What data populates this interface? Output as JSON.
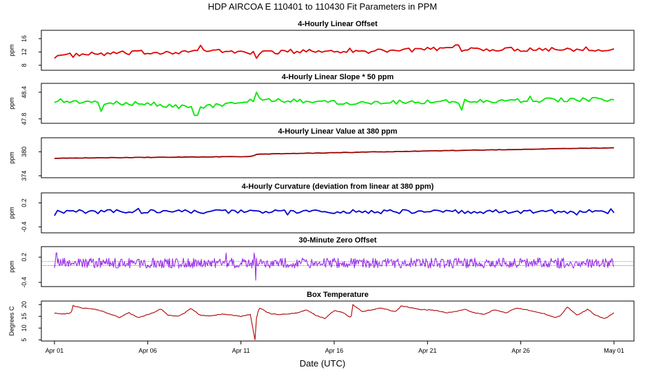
{
  "figure": {
    "title": "HDP   AIRCOA E   110401 to 110430   Fit Parameters in PPM",
    "xlabel": "Date (UTC)",
    "x_ticks": [
      "Apr 01",
      "Apr 06",
      "Apr 11",
      "Apr 16",
      "Apr 21",
      "Apr 26",
      "May 01"
    ]
  },
  "chart_data": [
    {
      "type": "line",
      "title": "4-Hourly Linear Offset",
      "ylabel": "ppm",
      "yticks": [
        "8",
        "12",
        "16"
      ],
      "ylim": [
        6.5,
        18.5
      ],
      "color": "#e00000",
      "x_range_days": [
        0,
        30
      ],
      "baseline": [
        [
          0,
          10.8
        ],
        [
          3,
          11.5
        ],
        [
          8,
          12.3
        ],
        [
          11,
          11.9
        ],
        [
          15,
          12.4
        ],
        [
          22,
          12.8
        ],
        [
          30,
          12.9
        ]
      ],
      "noise": 0.7,
      "step_hours": 4,
      "spikes": [
        [
          7.8,
          14.0
        ],
        [
          10.8,
          10.1
        ],
        [
          16.8,
          11.6
        ],
        [
          21.6,
          14.1
        ],
        [
          28.5,
          13.5
        ]
      ]
    },
    {
      "type": "line",
      "title": "4-Hourly Linear Slope * 50 ppm",
      "ylabel": "ppm",
      "yticks": [
        "47.8",
        "48.4"
      ],
      "ylim": [
        47.7,
        48.6
      ],
      "color": "#00e800",
      "x_range_days": [
        0,
        30
      ],
      "baseline": [
        [
          0,
          48.22
        ],
        [
          2.5,
          48.15
        ],
        [
          5,
          48.15
        ],
        [
          7.5,
          48.05
        ],
        [
          11,
          48.22
        ],
        [
          16,
          48.17
        ],
        [
          30,
          48.24
        ]
      ],
      "noise": 0.05,
      "step_hours": 4,
      "spikes": [
        [
          2.5,
          47.97
        ],
        [
          7.6,
          47.88
        ],
        [
          10.8,
          48.4
        ],
        [
          21.8,
          48.0
        ],
        [
          25.5,
          48.31
        ]
      ]
    },
    {
      "type": "line",
      "title": "4-Hourly Linear Value at 380 ppm",
      "ylabel": "ppm",
      "yticks": [
        "374",
        "380"
      ],
      "ylim": [
        373.5,
        383.5
      ],
      "color": "#990000",
      "x_range_days": [
        0,
        30
      ],
      "baseline": [
        [
          0,
          378.4
        ],
        [
          10.5,
          378.8
        ],
        [
          10.9,
          379.4
        ],
        [
          20,
          380.2
        ],
        [
          30,
          381.0
        ]
      ],
      "noise": 0.05,
      "step_hours": 4,
      "spikes": []
    },
    {
      "type": "line",
      "title": "4-Hourly Curvature (deviation from linear at 380 ppm)",
      "ylabel": "ppm",
      "yticks": [
        "-0.4",
        "0.2"
      ],
      "ylim": [
        -0.55,
        0.45
      ],
      "color": "#0000d0",
      "x_range_days": [
        0,
        30
      ],
      "baseline": [
        [
          0,
          -0.02
        ],
        [
          30,
          -0.02
        ]
      ],
      "noise": 0.05,
      "step_hours": 4,
      "spikes": [
        [
          0.0,
          -0.12
        ],
        [
          4.5,
          0.06
        ],
        [
          12.5,
          -0.1
        ],
        [
          28.0,
          -0.1
        ],
        [
          29.8,
          0.05
        ]
      ]
    },
    {
      "type": "line",
      "title": "30-Minute Zero Offset",
      "ylabel": "ppm",
      "yticks": [
        "-0.4",
        "0.2"
      ],
      "ylim": [
        -0.5,
        0.45
      ],
      "color": "#9a30e8",
      "x_range_days": [
        0,
        30
      ],
      "baseline": [
        [
          0,
          0.06
        ],
        [
          30,
          0.06
        ]
      ],
      "noise": 0.12,
      "step_hours": 1,
      "spikes": [
        [
          10.8,
          -0.35
        ],
        [
          10.7,
          0.3
        ],
        [
          0.1,
          0.3
        ],
        [
          9.2,
          0.3
        ]
      ],
      "hlines": [
        0.0,
        0.1
      ]
    },
    {
      "type": "line",
      "title": "Box Temperature",
      "ylabel": "Degrees C",
      "yticks": [
        "5",
        "10",
        "15",
        "20"
      ],
      "ylim": [
        4.5,
        21.5
      ],
      "color": "#b00000",
      "x_range_days": [
        0,
        30
      ],
      "baseline": [
        [
          0,
          16.5
        ],
        [
          0.5,
          16.0
        ],
        [
          0.9,
          16.5
        ],
        [
          1,
          19.5
        ],
        [
          1.5,
          18.5
        ],
        [
          2.2,
          18.0
        ],
        [
          2.8,
          16.5
        ],
        [
          3.5,
          14.5
        ],
        [
          4,
          16.5
        ],
        [
          4.5,
          14.5
        ],
        [
          5.3,
          16.5
        ],
        [
          5.7,
          18.2
        ],
        [
          6.1,
          15.5
        ],
        [
          6.6,
          15.0
        ],
        [
          7.0,
          16.5
        ],
        [
          7.3,
          18.5
        ],
        [
          7.8,
          15.5
        ],
        [
          8.3,
          15.0
        ],
        [
          9,
          16.0
        ],
        [
          9.5,
          15.5
        ],
        [
          10.0,
          15.0
        ],
        [
          10.5,
          15.8
        ],
        [
          10.75,
          5.0
        ],
        [
          10.85,
          16.0
        ],
        [
          11,
          18.5
        ],
        [
          11.6,
          16.0
        ],
        [
          12.2,
          15.8
        ],
        [
          13,
          16.5
        ],
        [
          13.5,
          17.8
        ],
        [
          14,
          15.5
        ],
        [
          14.5,
          14.0
        ],
        [
          15,
          17.5
        ],
        [
          15.5,
          16.5
        ],
        [
          15.9,
          14.2
        ],
        [
          16.0,
          20.0
        ],
        [
          16.5,
          17.0
        ],
        [
          17.5,
          18.5
        ],
        [
          18.3,
          17.0
        ],
        [
          18.6,
          19.5
        ],
        [
          19.5,
          18.0
        ],
        [
          20.5,
          17.5
        ],
        [
          21,
          16.5
        ],
        [
          21.5,
          17.0
        ],
        [
          22,
          18.0
        ],
        [
          22.5,
          16.5
        ],
        [
          23,
          15.8
        ],
        [
          23.6,
          17.8
        ],
        [
          24.2,
          16.5
        ],
        [
          24.8,
          18.5
        ],
        [
          25.5,
          17.5
        ],
        [
          26.3,
          16.0
        ],
        [
          26.8,
          14.5
        ],
        [
          27.1,
          15.0
        ],
        [
          27.5,
          19.0
        ],
        [
          28,
          15.5
        ],
        [
          28.6,
          18.0
        ],
        [
          29.0,
          15.5
        ],
        [
          29.5,
          14.0
        ],
        [
          30,
          16.5
        ]
      ],
      "noise": 0.15,
      "step_hours": 2,
      "spikes": []
    }
  ]
}
